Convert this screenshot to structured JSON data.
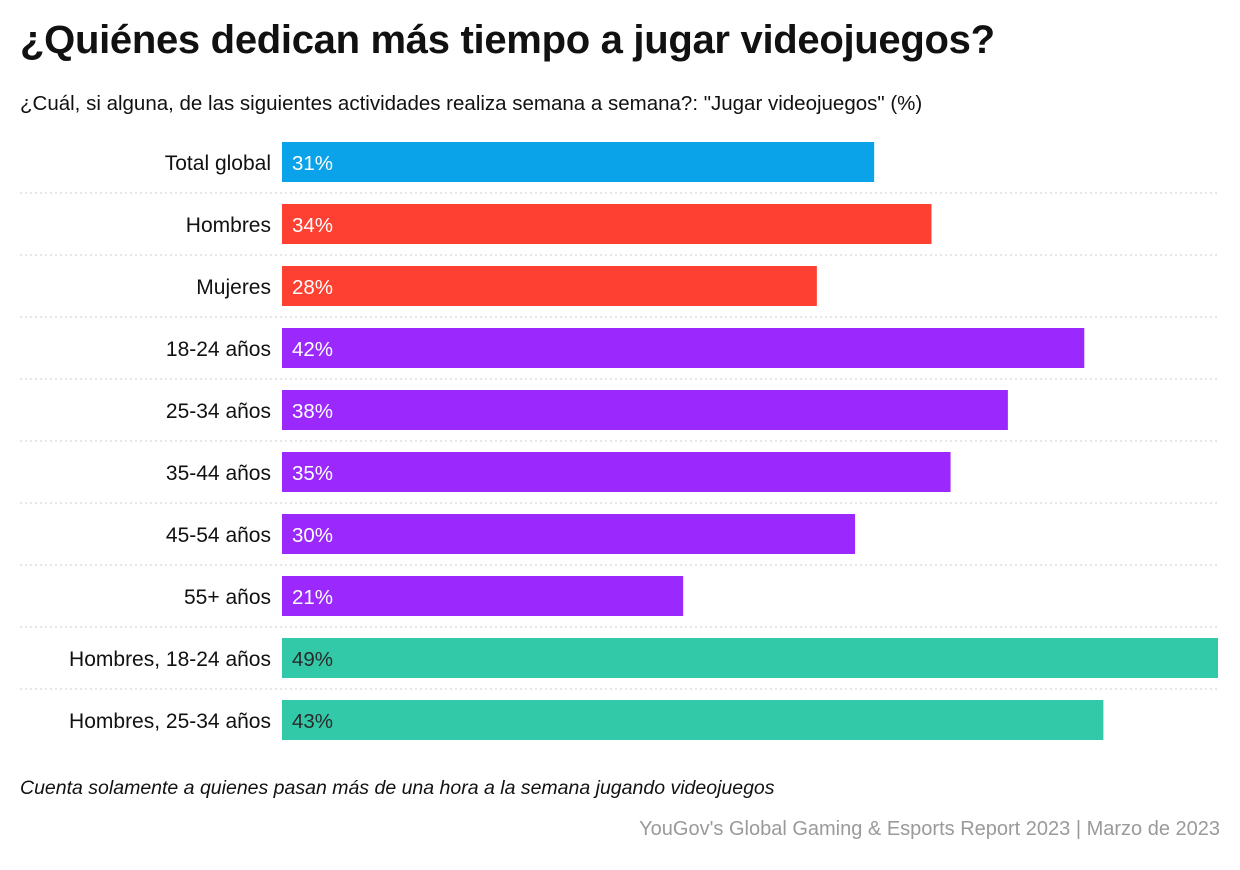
{
  "header": {
    "title": "¿Quiénes dedican más tiempo a jugar videojuegos?",
    "subtitle": "¿Cuál, si alguna, de las siguientes actividades realiza semana a semana?: \"Jugar videojuegos\" (%)"
  },
  "footer": {
    "note": "Cuenta solamente a quienes pasan más de una hora a la semana jugando videojuegos",
    "source": "YouGov's Global Gaming & Esports Report 2023 | Marzo de 2023"
  },
  "colors": {
    "total": "#0aa3e9",
    "gender": "#fd4031",
    "age": "#9b29fe",
    "men_age": "#32c9a8",
    "gridline": "#cccccc"
  },
  "chart_data": {
    "type": "bar",
    "orientation": "horizontal",
    "categories": [
      "Total global",
      "Hombres",
      "Mujeres",
      "18-24 años",
      "25-34 años",
      "35-44 años",
      "45-54 años",
      "55+ años",
      "Hombres, 18-24 años",
      "Hombres, 25-34 años"
    ],
    "values": [
      31,
      34,
      28,
      42,
      38,
      35,
      30,
      21,
      49,
      43
    ],
    "value_labels": [
      "31%",
      "34%",
      "28%",
      "42%",
      "38%",
      "35%",
      "30%",
      "21%",
      "49%",
      "43%"
    ],
    "groups": [
      "total",
      "gender",
      "gender",
      "age",
      "age",
      "age",
      "age",
      "age",
      "men_age",
      "men_age"
    ],
    "xlim": [
      0,
      49
    ],
    "grid": false,
    "legend": "none"
  }
}
